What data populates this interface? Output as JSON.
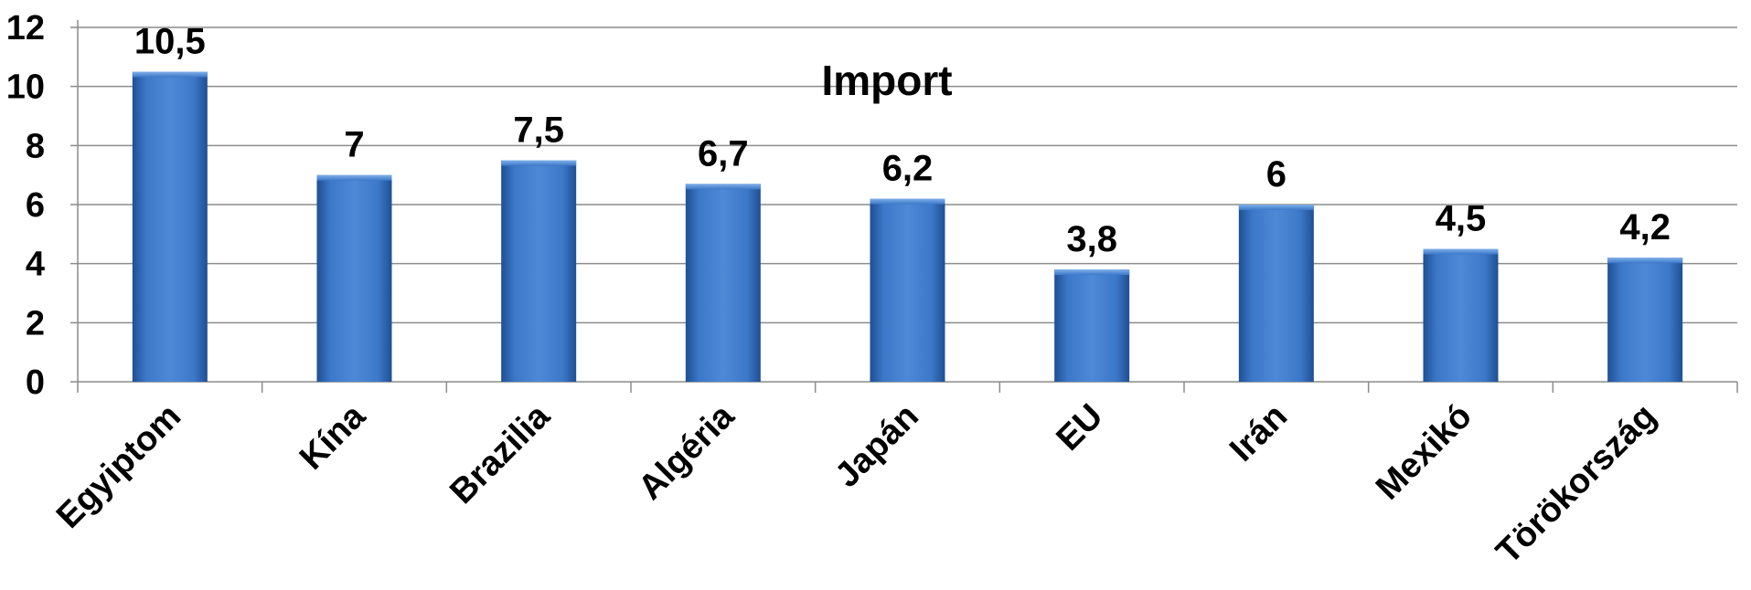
{
  "chart_data": {
    "type": "bar",
    "title": "Import",
    "xlabel": "",
    "ylabel": "",
    "categories": [
      "Egyiptom",
      "Kína",
      "Brazilia",
      "Algéria",
      "Japán",
      "EU",
      "Irán",
      "Mexikó",
      "Törökország"
    ],
    "series": [
      {
        "values": [
          10.5,
          7,
          7.5,
          6.7,
          6.2,
          3.8,
          6,
          4.5,
          4.2
        ],
        "labels": [
          "10,5",
          "7",
          "7,5",
          "6,7",
          "6,2",
          "3,8",
          "6",
          "4,5",
          "4,2"
        ]
      }
    ],
    "ylim": [
      0,
      12
    ],
    "yticks": [
      0,
      2,
      4,
      6,
      8,
      10,
      12
    ],
    "grid": true,
    "legend": "none",
    "colors": {
      "bar": "#3c78c8",
      "bar_dark": "#23508f",
      "bar_light": "#5c95dc",
      "gridline": "#8c8c8c",
      "axis": "#8c8c8c"
    }
  }
}
